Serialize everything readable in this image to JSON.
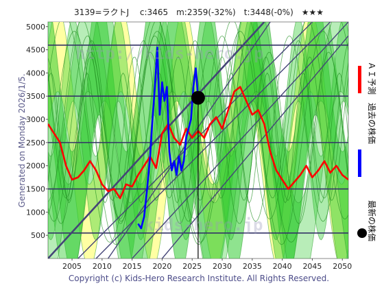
{
  "header": {
    "title": "3139=ラクトJ　 c:3465　m:2359(-32%)　t:3448(-0%)　★★★"
  },
  "side_label": "Generated on Monday 2026/1/5.",
  "copyright": "Copyright (c) Kids-Hero Research Institute. All Rights Reserved.",
  "watermark": {
    "top": "http://kids-hero.jp",
    "bottom": "kids-hero.jp"
  },
  "legend": {
    "forecast": "ＡＩ予測",
    "past": "過去の株価",
    "latest": "最新の株価"
  },
  "colors": {
    "forecast": "#ff0000",
    "past": "#0000ff",
    "latest": "#000000",
    "band_green": "#33cc33",
    "band_yellow": "#ffff99",
    "trend_lines": "#444477",
    "horizontal_lines": "#333366"
  },
  "chart_data": {
    "type": "line",
    "xlim": [
      2001,
      2051
    ],
    "ylim": [
      0,
      5100
    ],
    "x_ticks": [
      2005,
      2010,
      2015,
      2020,
      2025,
      2030,
      2035,
      2040,
      2045,
      2050
    ],
    "y_ticks": [
      500,
      1000,
      1500,
      2000,
      2500,
      3000,
      3500,
      4000,
      4500,
      5000
    ],
    "horizontal_levels": [
      550,
      1500,
      2500,
      3500,
      4600
    ],
    "latest_point": {
      "x": 2025.99,
      "y": 3465
    },
    "trend_lines": [
      {
        "x": [
          2001,
          2037
        ],
        "y": [
          0,
          5100
        ]
      },
      {
        "x": [
          2006,
          2045
        ],
        "y": [
          0,
          5100
        ]
      },
      {
        "x": [
          2009,
          2048
        ],
        "y": [
          0,
          5100
        ]
      },
      {
        "x": [
          2015,
          2051
        ],
        "y": [
          0,
          5100
        ]
      },
      {
        "x": [
          2020,
          2051
        ],
        "y": [
          0,
          4800
        ]
      },
      {
        "x": [
          2011,
          2038
        ],
        "y": [
          0,
          5100
        ]
      }
    ],
    "series": [
      {
        "key": "forecast",
        "x": [
          2001,
          2002,
          2003,
          2004,
          2005,
          2006,
          2007,
          2008,
          2009,
          2010,
          2011,
          2012,
          2013,
          2014,
          2015,
          2016,
          2017,
          2018,
          2019,
          2020,
          2021,
          2022,
          2023,
          2024,
          2025,
          2026,
          2027,
          2028,
          2029,
          2030,
          2031,
          2032,
          2033,
          2034,
          2035,
          2036,
          2037,
          2038,
          2039,
          2040,
          2041,
          2042,
          2043,
          2044,
          2045,
          2046,
          2047,
          2048,
          2049,
          2050,
          2051
        ],
        "y": [
          2900,
          2700,
          2500,
          2000,
          1700,
          1750,
          1900,
          2100,
          1900,
          1600,
          1450,
          1500,
          1300,
          1600,
          1550,
          1800,
          2000,
          2200,
          1950,
          2700,
          2900,
          2600,
          2450,
          2800,
          2600,
          2750,
          2600,
          2900,
          3050,
          2800,
          3200,
          3600,
          3700,
          3400,
          3100,
          3200,
          2900,
          2300,
          1900,
          1700,
          1500,
          1650,
          1800,
          2000,
          1750,
          1900,
          2100,
          1850,
          2000,
          1800,
          1700
        ]
      },
      {
        "key": "past",
        "x": [
          2016.0,
          2016.5,
          2017.0,
          2017.5,
          2018.0,
          2018.4,
          2018.8,
          2019.2,
          2019.6,
          2020.0,
          2020.4,
          2020.8,
          2021.2,
          2021.6,
          2022.0,
          2022.4,
          2022.8,
          2023.2,
          2023.6,
          2024.0,
          2024.4,
          2024.8,
          2025.2,
          2025.6,
          2025.99
        ],
        "y": [
          750,
          650,
          900,
          1500,
          2200,
          3000,
          3700,
          4550,
          3100,
          3800,
          3400,
          3700,
          2300,
          1900,
          2100,
          1800,
          2200,
          1900,
          2100,
          2600,
          2800,
          3000,
          3700,
          4100,
          3465
        ]
      }
    ]
  }
}
